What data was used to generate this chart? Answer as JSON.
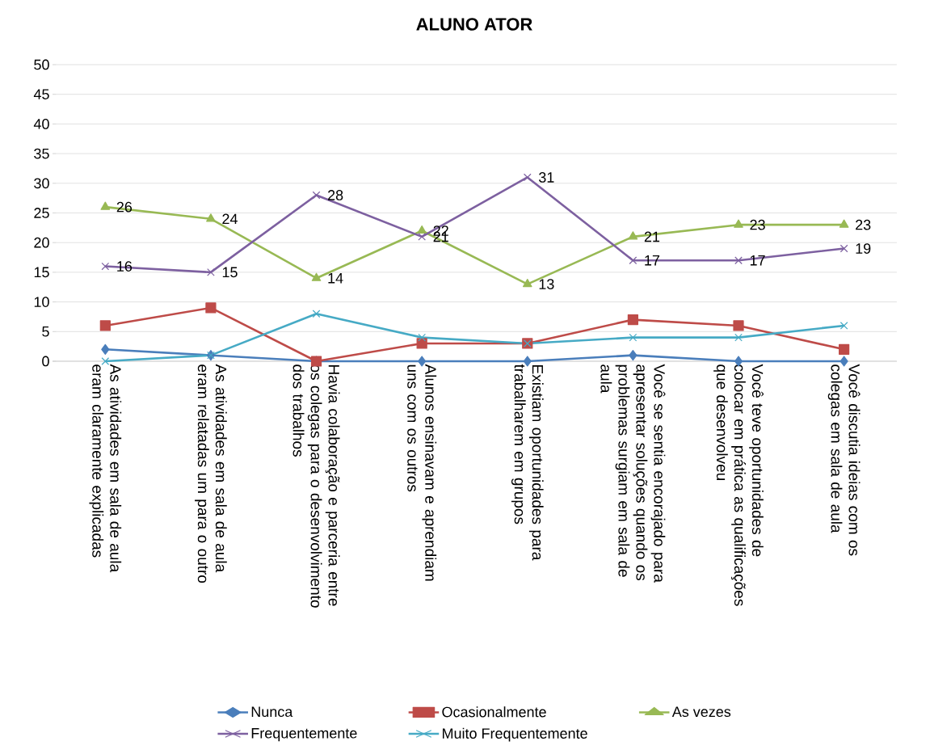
{
  "chart_data": {
    "type": "line",
    "title": "ALUNO ATOR",
    "categories": [
      "As atividades em sala de aula eram claramente explicadas",
      "As atividades em sala de aula eram relatadas um para o outro",
      "Havia colaboração e parceria entre os colegas para o desenvolvimento dos trabalhos",
      "Alunos ensinavam e aprendiam uns com os outros",
      "Existiam oportunidades para trabalharem em grupos",
      "Você se sentia encorajado para apresentar soluções quando os problemas surgiam em sala de aula",
      "Você teve oportunidades de colocar em prática as qualificações que desenvolveu",
      "Você discutia ideias com os colegas em sala de aula"
    ],
    "series": [
      {
        "name": "Nunca",
        "color": "#4a7ebb",
        "marker": "diamond",
        "values": [
          2,
          1,
          0,
          0,
          0,
          1,
          0,
          0
        ]
      },
      {
        "name": "Ocasionalmente",
        "color": "#be4b48",
        "marker": "square",
        "values": [
          6,
          9,
          0,
          3,
          3,
          7,
          6,
          2
        ]
      },
      {
        "name": "As vezes",
        "color": "#98b954",
        "marker": "triangle",
        "values": [
          26,
          24,
          14,
          22,
          13,
          21,
          23,
          23
        ],
        "value_labels": [
          "26",
          "24",
          "14",
          "22",
          "13",
          "21",
          "23",
          "23"
        ]
      },
      {
        "name": "Frequentemente",
        "color": "#7d60a0",
        "marker": "cross",
        "values": [
          16,
          15,
          28,
          21,
          31,
          17,
          17,
          19
        ],
        "value_labels": [
          "16",
          "15",
          "28",
          "21",
          "31",
          "17",
          "17",
          "19"
        ]
      },
      {
        "name": "Muito Frequentemente",
        "color": "#46aac5",
        "marker": "cross",
        "values": [
          0,
          1,
          8,
          4,
          3,
          4,
          4,
          6
        ]
      }
    ],
    "ylim": [
      0,
      50
    ],
    "yticks": [
      0,
      5,
      10,
      15,
      20,
      25,
      30,
      35,
      40,
      45,
      50
    ],
    "grid": "y",
    "legend": "bottom",
    "line_style": "solid"
  }
}
